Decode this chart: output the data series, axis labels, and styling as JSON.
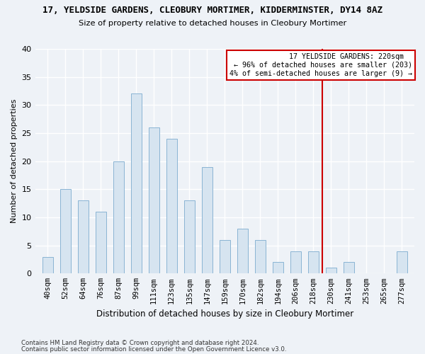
{
  "title": "17, YELDSIDE GARDENS, CLEOBURY MORTIMER, KIDDERMINSTER, DY14 8AZ",
  "subtitle": "Size of property relative to detached houses in Cleobury Mortimer",
  "xlabel": "Distribution of detached houses by size in Cleobury Mortimer",
  "ylabel": "Number of detached properties",
  "bar_labels": [
    "40sqm",
    "52sqm",
    "64sqm",
    "76sqm",
    "87sqm",
    "99sqm",
    "111sqm",
    "123sqm",
    "135sqm",
    "147sqm",
    "159sqm",
    "170sqm",
    "182sqm",
    "194sqm",
    "206sqm",
    "218sqm",
    "230sqm",
    "241sqm",
    "253sqm",
    "265sqm",
    "277sqm"
  ],
  "bar_values": [
    3,
    15,
    13,
    11,
    20,
    32,
    26,
    24,
    13,
    19,
    6,
    8,
    6,
    2,
    4,
    4,
    1,
    2,
    0,
    0,
    4
  ],
  "bar_color": "#d6e4f0",
  "bar_edgecolor": "#8ab4d4",
  "marker_line_color": "#cc0000",
  "annotation_line1": "  17 YELDSIDE GARDENS: 220sqm  ",
  "annotation_line2": "← 96% of detached houses are smaller (203)",
  "annotation_line3": "4% of semi-detached houses are larger (9) →",
  "ylim": [
    0,
    40
  ],
  "yticks": [
    0,
    5,
    10,
    15,
    20,
    25,
    30,
    35,
    40
  ],
  "footer1": "Contains HM Land Registry data © Crown copyright and database right 2024.",
  "footer2": "Contains public sector information licensed under the Open Government Licence v3.0.",
  "bg_color": "#eef2f7",
  "plot_bg_color": "#eef2f7",
  "bar_width": 0.6,
  "marker_index": 15.5
}
